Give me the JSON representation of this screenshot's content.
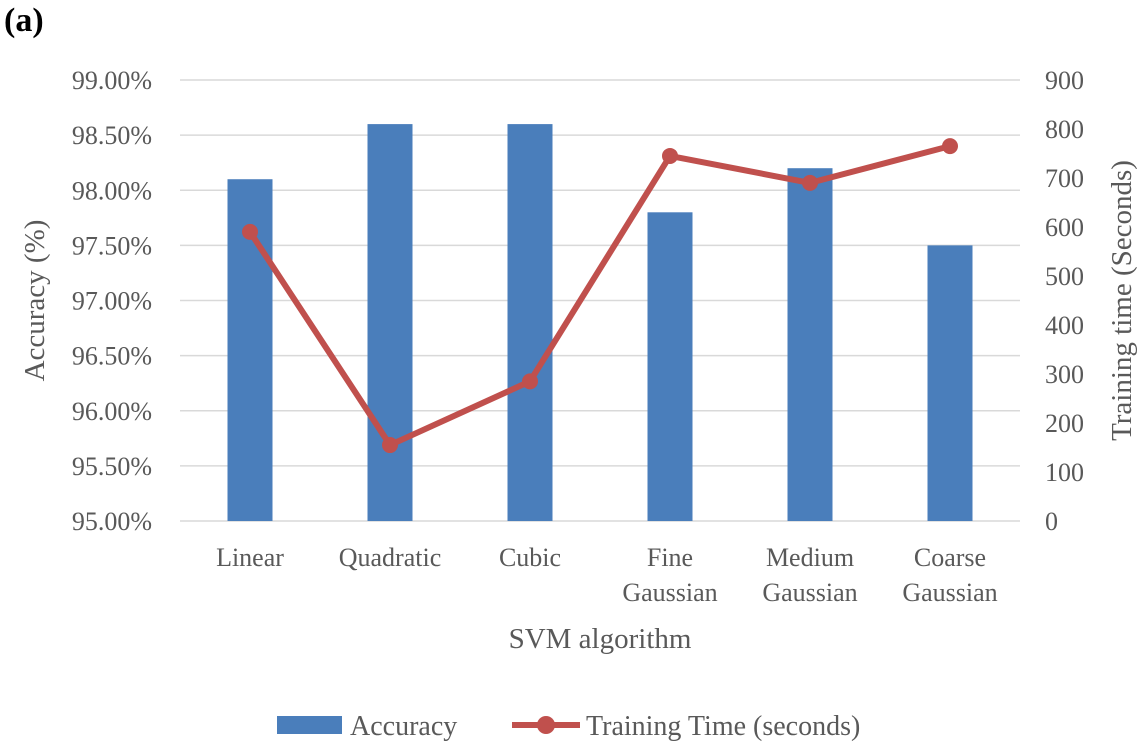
{
  "panel_label": "(a)",
  "chart_data": {
    "type": "bar",
    "xlabel": "SVM algorithm",
    "ylabel": "Accuracy (%)",
    "y2label": "Training time (Seconds)",
    "categories": [
      [
        "Linear"
      ],
      [
        "Quadratic"
      ],
      [
        "Cubic"
      ],
      [
        "Fine",
        "Gaussian"
      ],
      [
        "Medium",
        "Gaussian"
      ],
      [
        "Coarse",
        "Gaussian"
      ]
    ],
    "ylim": [
      95.0,
      99.0
    ],
    "yticks": [
      "95.00%",
      "95.50%",
      "96.00%",
      "96.50%",
      "97.00%",
      "97.50%",
      "98.00%",
      "98.50%",
      "99.00%"
    ],
    "y2lim": [
      0,
      900
    ],
    "y2ticks": [
      "0",
      "100",
      "200",
      "300",
      "400",
      "500",
      "600",
      "700",
      "800",
      "900"
    ],
    "grid": true,
    "legend_position": "bottom",
    "series": [
      {
        "name": "Accuracy",
        "type": "bar",
        "axis": "left",
        "color": "#4A7EBB",
        "values": [
          98.1,
          98.6,
          98.6,
          97.8,
          98.2,
          97.5
        ]
      },
      {
        "name": "Training Time (seconds)",
        "type": "line",
        "axis": "right",
        "color": "#C0504D",
        "values": [
          590,
          155,
          285,
          745,
          690,
          765
        ]
      }
    ]
  }
}
